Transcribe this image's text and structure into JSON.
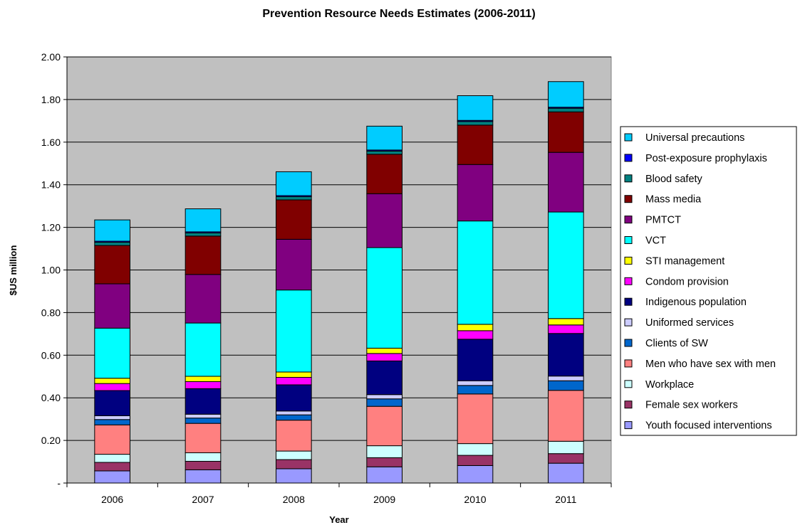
{
  "chart_data": {
    "type": "bar",
    "stacked": true,
    "title": "Prevention Resource Needs Estimates (2006-2011)",
    "xlabel": "Year",
    "ylabel": "$US million",
    "ylim": [
      0,
      2.0
    ],
    "yticks": [
      "-",
      "0.20",
      "0.40",
      "0.60",
      "0.80",
      "1.00",
      "1.20",
      "1.40",
      "1.60",
      "1.80",
      "2.00"
    ],
    "grid": true,
    "legend_position": "right",
    "plot_background": "#c0c0c0",
    "categories": [
      "2006",
      "2007",
      "2008",
      "2009",
      "2010",
      "2011"
    ],
    "series": [
      {
        "name": "Youth focused interventions",
        "color": "#9999ff",
        "values": [
          0.057,
          0.062,
          0.067,
          0.076,
          0.082,
          0.093
        ]
      },
      {
        "name": "Female sex workers",
        "color": "#993366",
        "values": [
          0.04,
          0.04,
          0.043,
          0.043,
          0.048,
          0.045
        ]
      },
      {
        "name": "Workplace",
        "color": "#ccffff",
        "values": [
          0.038,
          0.04,
          0.04,
          0.056,
          0.055,
          0.058
        ]
      },
      {
        "name": "Men who have sex with men",
        "color": "#ff8080",
        "values": [
          0.138,
          0.138,
          0.145,
          0.185,
          0.233,
          0.239
        ]
      },
      {
        "name": "Clients of SW",
        "color": "#0066cc",
        "values": [
          0.025,
          0.025,
          0.025,
          0.035,
          0.04,
          0.045
        ]
      },
      {
        "name": "Uniformed services",
        "color": "#ccccff",
        "values": [
          0.018,
          0.018,
          0.018,
          0.02,
          0.022,
          0.022
        ]
      },
      {
        "name": "Indigenous population",
        "color": "#000080",
        "values": [
          0.118,
          0.12,
          0.123,
          0.158,
          0.195,
          0.2
        ]
      },
      {
        "name": "Condom provision",
        "color": "#ff00ff",
        "values": [
          0.033,
          0.033,
          0.035,
          0.035,
          0.04,
          0.04
        ]
      },
      {
        "name": "STI management",
        "color": "#ffff00",
        "values": [
          0.025,
          0.025,
          0.025,
          0.025,
          0.03,
          0.03
        ]
      },
      {
        "name": "VCT",
        "color": "#00ffff",
        "values": [
          0.235,
          0.25,
          0.385,
          0.472,
          0.485,
          0.5
        ]
      },
      {
        "name": "PMTCT",
        "color": "#800080",
        "values": [
          0.208,
          0.228,
          0.238,
          0.253,
          0.265,
          0.28
        ]
      },
      {
        "name": "Mass media",
        "color": "#800000",
        "values": [
          0.18,
          0.18,
          0.185,
          0.185,
          0.185,
          0.19
        ]
      },
      {
        "name": "Blood safety",
        "color": "#008080",
        "values": [
          0.015,
          0.015,
          0.015,
          0.015,
          0.017,
          0.017
        ]
      },
      {
        "name": "Post-exposure prophylaxis",
        "color": "#0000ff",
        "values": [
          0.005,
          0.005,
          0.005,
          0.005,
          0.005,
          0.005
        ]
      },
      {
        "name": "Universal precautions",
        "color": "#00ccff",
        "values": [
          0.1,
          0.108,
          0.112,
          0.112,
          0.116,
          0.12
        ]
      }
    ]
  }
}
